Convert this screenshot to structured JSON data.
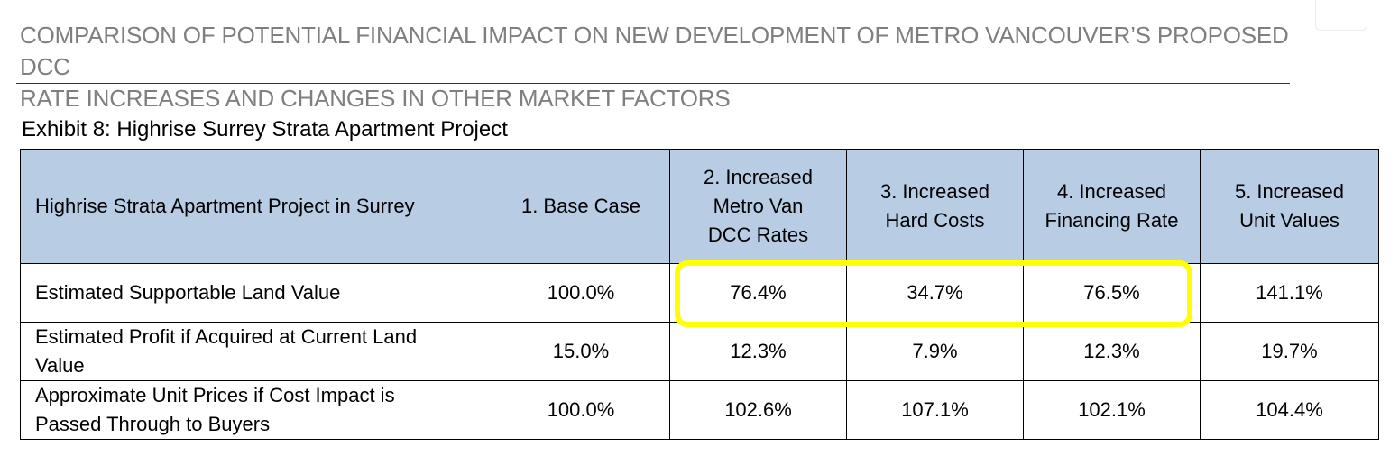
{
  "document": {
    "heading_line1": "COMPARISON OF POTENTIAL FINANCIAL IMPACT ON NEW DEVELOPMENT OF METRO VANCOUVER’S PROPOSED DCC",
    "heading_line2": "RATE INCREASES AND CHANGES IN OTHER MARKET FACTORS",
    "exhibit_title": "Exhibit 8: Highrise Surrey Strata Apartment Project"
  },
  "table": {
    "headers": [
      "Highrise Strata Apartment Project in Surrey",
      "1. Base Case",
      "2. Increased Metro Van DCC Rates",
      "3. Increased Hard Costs",
      "4. Increased Financing Rate",
      "5. Increased Unit Values"
    ],
    "rows": [
      {
        "label": "Estimated Supportable Land Value",
        "values": [
          "100.0%",
          "76.4%",
          "34.7%",
          "76.5%",
          "141.1%"
        ]
      },
      {
        "label": "Estimated Profit if Acquired at Current Land Value",
        "values": [
          "15.0%",
          "12.3%",
          "7.9%",
          "12.3%",
          "19.7%"
        ]
      },
      {
        "label": "Approximate Unit Prices if Cost Impact is Passed Through to Buyers",
        "values": [
          "100.0%",
          "102.6%",
          "107.1%",
          "102.1%",
          "104.4%"
        ]
      }
    ]
  },
  "colors": {
    "header_fill": "#b8cce4",
    "heading_text": "#7f7f7f",
    "highlight": "#ffff00"
  }
}
